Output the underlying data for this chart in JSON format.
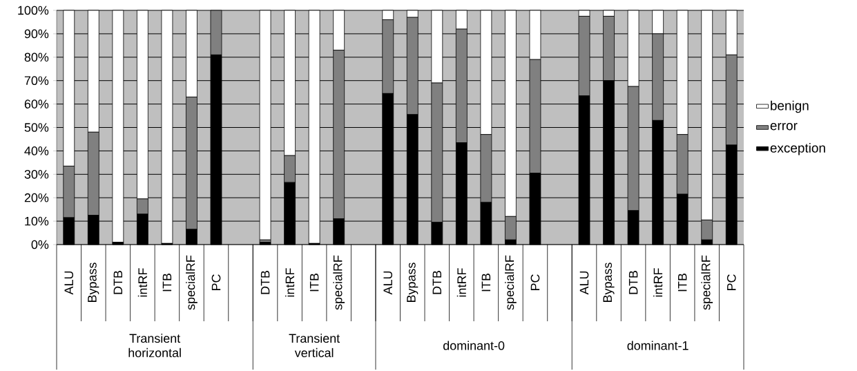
{
  "chart_data": {
    "type": "bar",
    "stacked": true,
    "categories": [
      "ALU",
      "Bypass",
      "DTB",
      "intRF",
      "ITB",
      "specialRF",
      "PC",
      null,
      "DTB",
      "intRF",
      "ITB",
      "specialRF",
      null,
      "ALU",
      "Bypass",
      "DTB",
      "intRF",
      "ITB",
      "specialRF",
      "PC",
      null,
      "ALU",
      "Bypass",
      "DTB",
      "intRF",
      "ITB",
      "specialRF",
      "PC"
    ],
    "series": [
      {
        "name": "exception",
        "color": "#000000",
        "values": [
          11.5,
          12.5,
          1,
          13,
          0.5,
          6.5,
          81,
          null,
          1,
          26.5,
          0.5,
          11,
          null,
          64.5,
          55.5,
          9.5,
          43.5,
          18,
          2,
          30.5,
          null,
          63.5,
          70,
          14.5,
          53,
          21.5,
          2,
          42.5
        ]
      },
      {
        "name": "error",
        "color": "#808080",
        "values": [
          22,
          35.5,
          0,
          6.5,
          0,
          56.5,
          19,
          null,
          1,
          11.5,
          0,
          72,
          null,
          31.5,
          41.5,
          59.5,
          48.5,
          29,
          10,
          48.5,
          null,
          34,
          27.5,
          53,
          37,
          25.5,
          8.5,
          38.5
        ]
      },
      {
        "name": "benign",
        "color": "#ffffff",
        "values": [
          66.5,
          52,
          99,
          80.5,
          99.5,
          37,
          0,
          null,
          98,
          62,
          99.5,
          17,
          null,
          4,
          3,
          31,
          8,
          53,
          88,
          21,
          null,
          2.5,
          2.5,
          32.5,
          10,
          53,
          89.5,
          19
        ]
      }
    ],
    "ylim": [
      0,
      100
    ],
    "yticks": [
      {
        "value": 0,
        "label": "0%"
      },
      {
        "value": 10,
        "label": "10%"
      },
      {
        "value": 20,
        "label": "20%"
      },
      {
        "value": 30,
        "label": "30%"
      },
      {
        "value": 40,
        "label": "40%"
      },
      {
        "value": 50,
        "label": "50%"
      },
      {
        "value": 60,
        "label": "60%"
      },
      {
        "value": 70,
        "label": "70%"
      },
      {
        "value": 80,
        "label": "80%"
      },
      {
        "value": 90,
        "label": "90%"
      },
      {
        "value": 100,
        "label": "100%"
      }
    ],
    "grid": "y",
    "legend": "right",
    "annotations": [
      "Transient horizontal",
      "Transient vertical",
      "dominant-0",
      "dominant-1"
    ]
  }
}
